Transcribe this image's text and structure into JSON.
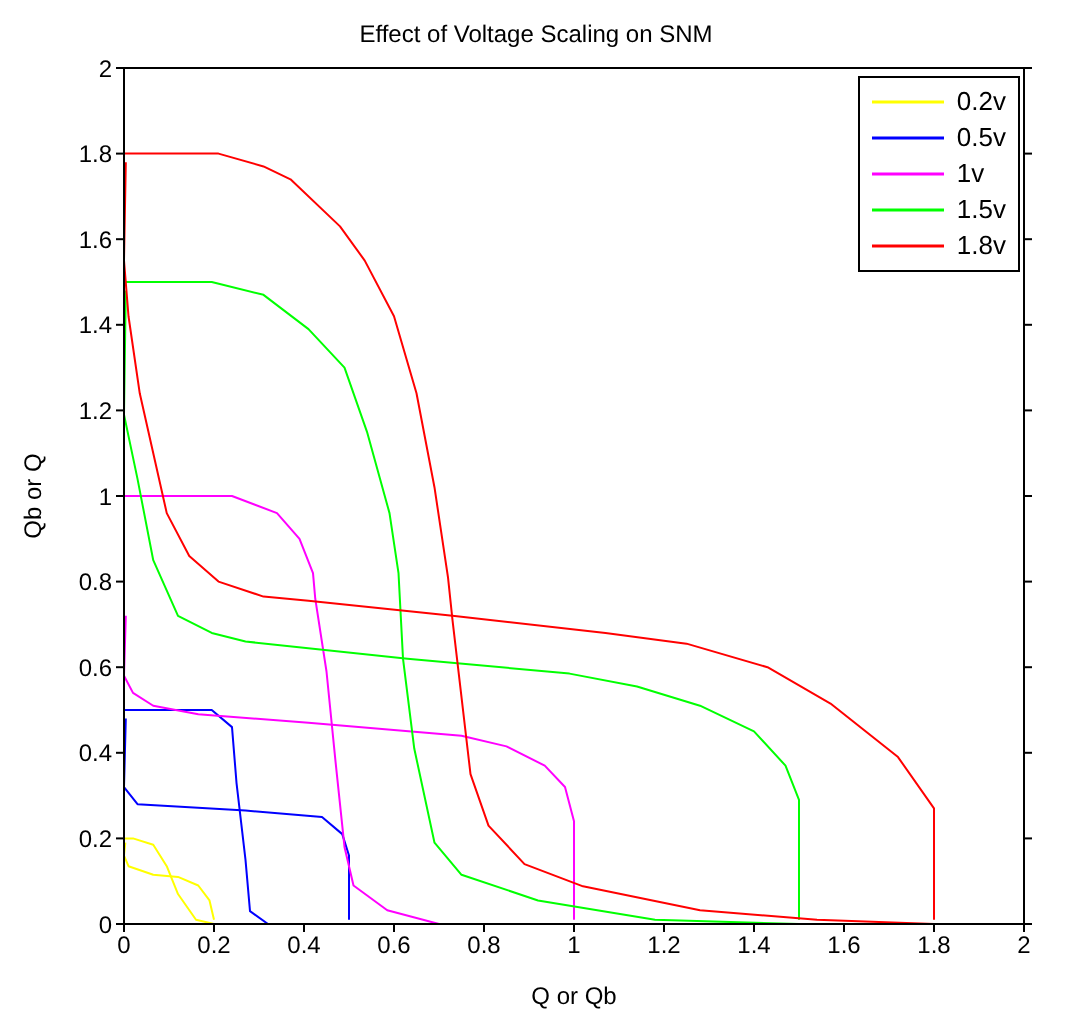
{
  "chart_data": {
    "type": "line",
    "title": "Effect of Voltage Scaling on SNM",
    "xlabel": "Q or Qb",
    "ylabel": "Qb or Q",
    "xlim": [
      0,
      2
    ],
    "ylim": [
      0,
      2
    ],
    "xticks": [
      0,
      0.2,
      0.4,
      0.6,
      0.8,
      1,
      1.2,
      1.4,
      1.6,
      1.8,
      2
    ],
    "yticks": [
      0,
      0.2,
      0.4,
      0.6,
      0.8,
      1,
      1.2,
      1.4,
      1.6,
      1.8,
      2
    ],
    "grid": false,
    "legend": "top right",
    "marker": "none",
    "line_style": "solid",
    "series": [
      {
        "name": "0.2v",
        "color": "#ffff00",
        "x": [
          0,
          0.02,
          0.065,
          0.095,
          0.12,
          0.16,
          0.2
        ],
        "values": [
          0.2,
          0.2,
          0.185,
          0.135,
          0.07,
          0.01,
          0
        ]
      },
      {
        "color": "#ffff00",
        "x": [
          0.003,
          0,
          0.01,
          0.065,
          0.12,
          0.165,
          0.19,
          0.2
        ],
        "values": [
          0.19,
          0.16,
          0.135,
          0.115,
          0.11,
          0.09,
          0.055,
          0.01
        ]
      },
      {
        "name": "0.5v",
        "color": "#0000ff",
        "x": [
          0,
          0.195,
          0.24,
          0.25,
          0.27,
          0.28,
          0.32,
          0.5
        ],
        "values": [
          0.5,
          0.5,
          0.46,
          0.33,
          0.15,
          0.03,
          0,
          0
        ]
      },
      {
        "color": "#0000ff",
        "x": [
          0.004,
          0,
          0.03,
          0.27,
          0.44,
          0.485,
          0.5,
          0.5
        ],
        "values": [
          0.48,
          0.32,
          0.28,
          0.265,
          0.25,
          0.21,
          0.16,
          0.01
        ]
      },
      {
        "name": "1v",
        "color": "#ff00ff",
        "x": [
          0,
          0.24,
          0.34,
          0.39,
          0.42,
          0.425,
          0.45,
          0.47,
          0.49,
          0.51,
          0.585,
          0.7,
          1
        ],
        "values": [
          1,
          1,
          0.96,
          0.9,
          0.82,
          0.76,
          0.59,
          0.38,
          0.18,
          0.09,
          0.032,
          0,
          0
        ]
      },
      {
        "color": "#ff00ff",
        "x": [
          0.004,
          0,
          0.02,
          0.065,
          0.165,
          0.41,
          0.75,
          0.85,
          0.935,
          0.98,
          1,
          1
        ],
        "values": [
          0.72,
          0.58,
          0.54,
          0.51,
          0.49,
          0.47,
          0.44,
          0.415,
          0.37,
          0.32,
          0.24,
          0.01
        ]
      },
      {
        "name": "1.5v",
        "color": "#00ff00",
        "x": [
          0,
          0.195,
          0.31,
          0.41,
          0.49,
          0.54,
          0.59,
          0.61,
          0.62,
          0.645,
          0.69,
          0.75,
          0.92,
          1.18,
          1.5
        ],
        "values": [
          1.5,
          1.5,
          1.47,
          1.39,
          1.3,
          1.15,
          0.96,
          0.82,
          0.62,
          0.41,
          0.19,
          0.115,
          0.055,
          0.01,
          0
        ]
      },
      {
        "color": "#00ff00",
        "x": [
          0.004,
          0,
          0.03,
          0.065,
          0.12,
          0.195,
          0.27,
          0.63,
          0.99,
          1.14,
          1.28,
          1.4,
          1.47,
          1.5,
          1.5,
          1.5
        ],
        "values": [
          1.48,
          1.19,
          1.04,
          0.85,
          0.72,
          0.68,
          0.66,
          0.62,
          0.585,
          0.555,
          0.51,
          0.45,
          0.37,
          0.29,
          0.2,
          0.01
        ]
      },
      {
        "name": "1.8v",
        "color": "#ff0000",
        "x": [
          0,
          0.21,
          0.31,
          0.37,
          0.48,
          0.535,
          0.6,
          0.65,
          0.69,
          0.72,
          0.73,
          0.75,
          0.77,
          0.81,
          0.89,
          1.02,
          1.28,
          1.54,
          1.8
        ],
        "values": [
          1.8,
          1.8,
          1.77,
          1.74,
          1.63,
          1.55,
          1.42,
          1.24,
          1.02,
          0.81,
          0.71,
          0.53,
          0.35,
          0.23,
          0.14,
          0.088,
          0.032,
          0.01,
          0
        ]
      },
      {
        "color": "#ff0000",
        "x": [
          0.004,
          0,
          0.01,
          0.035,
          0.095,
          0.145,
          0.21,
          0.31,
          0.41,
          0.73,
          1.07,
          1.25,
          1.43,
          1.57,
          1.72,
          1.8,
          1.8,
          1.8
        ],
        "values": [
          1.78,
          1.55,
          1.42,
          1.24,
          0.96,
          0.86,
          0.8,
          0.765,
          0.755,
          0.72,
          0.68,
          0.655,
          0.6,
          0.515,
          0.39,
          0.27,
          0.18,
          0.01
        ]
      }
    ]
  }
}
